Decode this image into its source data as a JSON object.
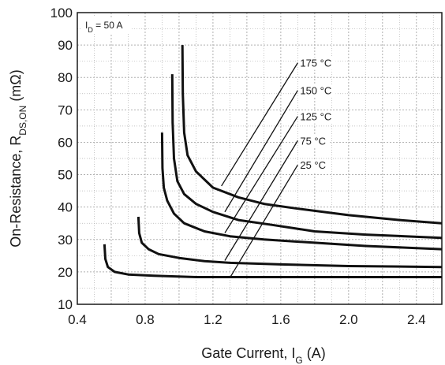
{
  "chart_data": {
    "type": "line",
    "xlabel": {
      "main": "Gate Current, I",
      "sub": "G",
      "unit": " (A)"
    },
    "ylabel": {
      "main": "On-Resistance, R",
      "sub": "DS,ON",
      "unit": " (mΩ)"
    },
    "condition": {
      "main": "I",
      "sub": "D",
      "rest": " = 50 A"
    },
    "xlim": [
      0.4,
      2.55
    ],
    "ylim": [
      10,
      100
    ],
    "xticks": [
      "0.4",
      "0.8",
      "1.2",
      "1.6",
      "2.0",
      "2.4"
    ],
    "yticks": [
      "10",
      "20",
      "30",
      "40",
      "50",
      "60",
      "70",
      "80",
      "90",
      "100"
    ],
    "grid": true,
    "series": [
      {
        "name": "175 °C",
        "x": [
          1.02,
          1.022,
          1.03,
          1.05,
          1.1,
          1.2,
          1.35,
          1.5,
          1.7,
          2.0,
          2.3,
          2.55
        ],
        "y": [
          90,
          75,
          63,
          56,
          51,
          46,
          43,
          41,
          39.5,
          37.5,
          36,
          35
        ]
      },
      {
        "name": "150 °C",
        "x": [
          0.96,
          0.962,
          0.97,
          0.99,
          1.03,
          1.1,
          1.2,
          1.35,
          1.55,
          1.8,
          2.1,
          2.55
        ],
        "y": [
          81,
          66,
          55,
          48,
          44,
          41,
          38.5,
          36,
          34.5,
          32.5,
          31.5,
          30.5
        ]
      },
      {
        "name": "125 °C",
        "x": [
          0.9,
          0.902,
          0.91,
          0.93,
          0.97,
          1.03,
          1.15,
          1.3,
          1.5,
          1.8,
          2.1,
          2.55
        ],
        "y": [
          63,
          52,
          46,
          42,
          38,
          35,
          32.5,
          31,
          30,
          29,
          28,
          27
        ]
      },
      {
        "name": "75 °C",
        "x": [
          0.76,
          0.765,
          0.78,
          0.82,
          0.88,
          1.0,
          1.15,
          1.3,
          1.6,
          2.0,
          2.55
        ],
        "y": [
          37,
          32,
          29,
          27,
          25.5,
          24.3,
          23.3,
          22.8,
          22.3,
          21.8,
          21.5
        ]
      },
      {
        "name": "25 °C",
        "x": [
          0.56,
          0.565,
          0.58,
          0.62,
          0.7,
          0.85,
          1.1,
          1.6,
          2.55
        ],
        "y": [
          28.5,
          24,
          21.5,
          20,
          19.2,
          18.8,
          18.4,
          18.4,
          18.4
        ]
      }
    ],
    "callouts": [
      {
        "label": "175 °C",
        "from": [
          1.25,
          46.5
        ],
        "to": [
          1.7,
          84.5
        ]
      },
      {
        "label": "150 °C",
        "from": [
          1.27,
          38.5
        ],
        "to": [
          1.7,
          76
        ]
      },
      {
        "label": "125 °C",
        "from": [
          1.27,
          32
        ],
        "to": [
          1.7,
          68
        ]
      },
      {
        "label": "75 °C",
        "from": [
          1.27,
          23.5
        ],
        "to": [
          1.7,
          60.5
        ]
      },
      {
        "label": "25 °C",
        "from": [
          1.3,
          18.2
        ],
        "to": [
          1.7,
          53
        ]
      }
    ]
  }
}
